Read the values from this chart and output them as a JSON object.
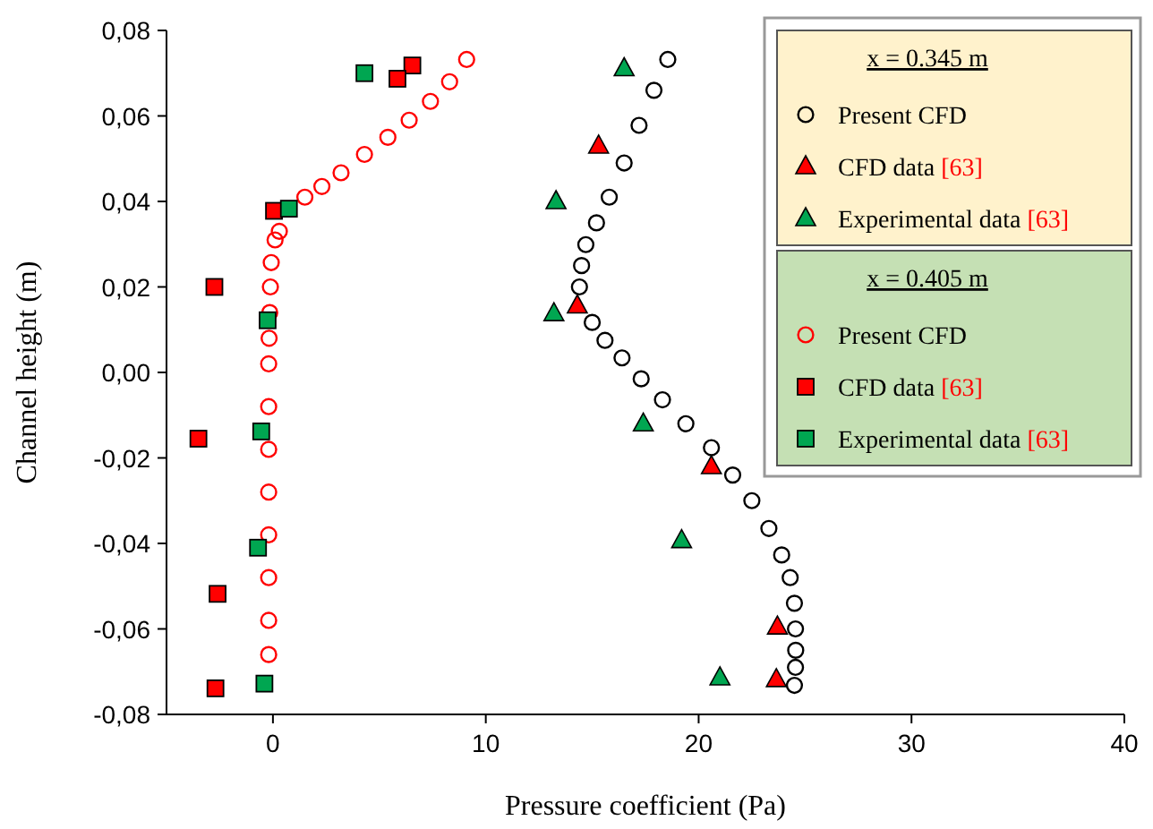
{
  "chart_data": {
    "type": "scatter",
    "xlabel": "Pressure coefficient (Pa)",
    "ylabel": "Channel height (m)",
    "xlim": [
      -5,
      40
    ],
    "xticks": [
      0,
      10,
      20,
      30,
      40
    ],
    "ylim": [
      -0.08,
      0.08
    ],
    "yticks": [
      {
        "value": -0.08,
        "label": "-0,08"
      },
      {
        "value": -0.06,
        "label": "-0,06"
      },
      {
        "value": -0.04,
        "label": "-0,04"
      },
      {
        "value": -0.02,
        "label": "-0,02"
      },
      {
        "value": 0,
        "label": "0,00"
      },
      {
        "value": 0.02,
        "label": "0,02"
      },
      {
        "value": 0.04,
        "label": "0,04"
      },
      {
        "value": 0.06,
        "label": "0,06"
      },
      {
        "value": 0.08,
        "label": "0,08"
      }
    ],
    "grid": false,
    "legend": "top right",
    "legend_title": [
      "x = 0.345 m",
      "x = 0.405 m"
    ],
    "series": [
      {
        "name": "Present CFD",
        "color": "#000000",
        "marker": "circle",
        "x": [
          18.55,
          17.9,
          17.2,
          16.5,
          15.8,
          15.2,
          14.7,
          14.5,
          14.4,
          15.0,
          15.6,
          16.4,
          17.3,
          18.3,
          19.4,
          20.6,
          21.6,
          22.5,
          23.3,
          23.9,
          24.3,
          24.5,
          24.55,
          24.56,
          24.55,
          24.5
        ],
        "values": [
          0.0732,
          0.066,
          0.0578,
          0.049,
          0.041,
          0.035,
          0.0299,
          0.025,
          0.02,
          0.0117,
          0.0075,
          0.0034,
          -0.0015,
          -0.0064,
          -0.012,
          -0.0176,
          -0.024,
          -0.03,
          -0.0365,
          -0.0427,
          -0.048,
          -0.054,
          -0.06,
          -0.065,
          -0.069,
          -0.0732
        ]
      },
      {
        "name": "CFD data [63]",
        "color": "#ff0000",
        "marker": "triangle",
        "x": [
          15.3,
          14.3,
          20.6,
          23.7,
          23.65
        ],
        "values": [
          0.053,
          0.0156,
          -0.022,
          -0.0595,
          -0.0718
        ]
      },
      {
        "name": "Experimental data [63]",
        "color": "#00a651",
        "marker": "triangle",
        "x": [
          16.5,
          13.3,
          13.2,
          17.4,
          19.2,
          21.0
        ],
        "values": [
          0.0711,
          0.04,
          0.0138,
          -0.012,
          -0.0393,
          -0.0714
        ]
      },
      {
        "name": "Present CFD",
        "color": "#ff0000",
        "marker": "circle",
        "x": [
          9.1,
          8.3,
          7.4,
          6.4,
          5.4,
          4.3,
          3.2,
          2.3,
          1.5,
          0.3,
          0.1,
          -0.08,
          -0.12,
          -0.15,
          -0.18,
          -0.2,
          -0.2,
          -0.2,
          -0.2,
          -0.2,
          -0.2,
          -0.2,
          -0.2
        ],
        "values": [
          0.0732,
          0.068,
          0.0634,
          0.059,
          0.055,
          0.051,
          0.0467,
          0.0435,
          0.041,
          0.033,
          0.031,
          0.0257,
          0.02,
          0.014,
          0.008,
          0.002,
          -0.008,
          -0.018,
          -0.028,
          -0.038,
          -0.048,
          -0.058,
          -0.066
        ]
      },
      {
        "name": "CFD data [63]",
        "color": "#ff0000",
        "marker": "square",
        "x": [
          6.55,
          5.85,
          0.05,
          -2.75,
          -3.5,
          -2.6,
          -2.7
        ],
        "values": [
          0.0718,
          0.0687,
          0.0378,
          0.02,
          -0.0155,
          -0.0518,
          -0.0739
        ]
      },
      {
        "name": "Experimental data [63]",
        "color": "#00a651",
        "marker": "square",
        "x": [
          4.3,
          0.75,
          -0.25,
          -0.55,
          -0.7,
          -0.4
        ],
        "values": [
          0.07,
          0.0383,
          0.0122,
          -0.0138,
          -0.041,
          -0.0728
        ]
      }
    ]
  }
}
